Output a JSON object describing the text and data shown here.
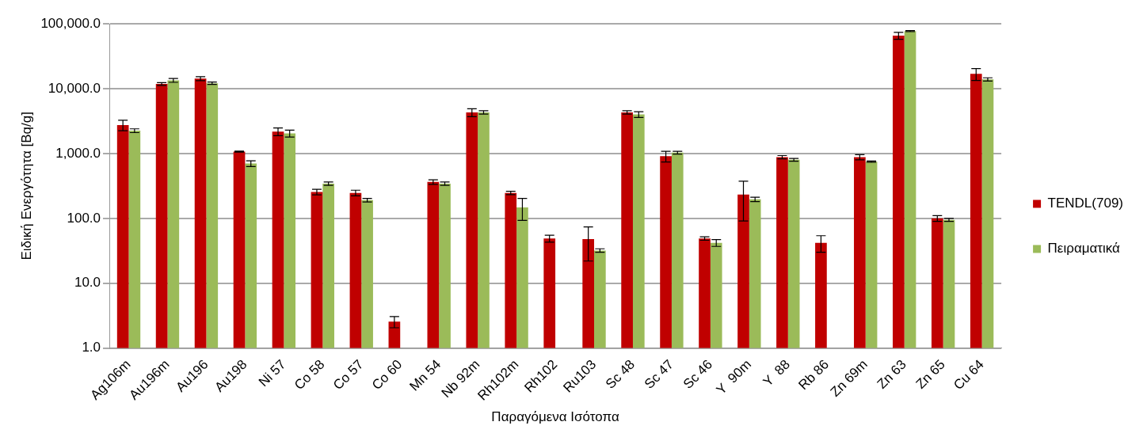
{
  "chart_data": {
    "type": "bar",
    "xlabel": "Παραγόμενα Ισότοπα",
    "ylabel": "Ειδική Ενεργότητα [Bq/g]",
    "categories": [
      "Ag106m",
      "Au196m",
      "Au196",
      "Au198",
      "Ni 57",
      "Co 58",
      "Co 57",
      "Co 60",
      "Mn 54",
      "Nb 92m",
      "Rh102m",
      "Rh102",
      "Ru103",
      "Sc 48",
      "Sc 47",
      "Sc 46",
      "Y  90m",
      "Y  88",
      "Rb 86",
      "Zn 69m",
      "Zn 63",
      "Zn 65",
      "Cu 64"
    ],
    "series": [
      {
        "name": "TENDL(709)",
        "color": "#c00000",
        "values": [
          2750,
          11800,
          14300,
          1070,
          2180,
          256,
          247,
          2.56,
          364,
          4300,
          247,
          49,
          48,
          4300,
          910,
          49,
          233,
          880,
          42,
          880,
          65700,
          100,
          16900
        ],
        "errors": [
          500,
          600,
          1000,
          20,
          300,
          25,
          25,
          0.5,
          30,
          600,
          15,
          6,
          26,
          250,
          170,
          3,
          142,
          50,
          12,
          80,
          8000,
          10,
          3500
        ]
      },
      {
        "name": "Πειραματικά",
        "color": "#9bbb59",
        "values": [
          2250,
          13400,
          12100,
          700,
          2040,
          343,
          191,
          null,
          343,
          4300,
          148,
          null,
          32,
          4000,
          1030,
          42,
          197,
          800,
          null,
          750,
          77000,
          95,
          13900
        ],
        "errors": [
          150,
          900,
          500,
          70,
          250,
          20,
          12,
          null,
          20,
          250,
          55,
          null,
          2,
          400,
          50,
          5,
          15,
          40,
          null,
          15,
          1500,
          5,
          800
        ]
      }
    ],
    "log": "y",
    "ylim": [
      1,
      100000
    ],
    "yticks": [
      {
        "value": 1,
        "label": "1.0"
      },
      {
        "value": 10,
        "label": "10.0"
      },
      {
        "value": 100,
        "label": "100.0"
      },
      {
        "value": 1000,
        "label": "1,000.0"
      },
      {
        "value": 10000,
        "label": "10,000.0"
      },
      {
        "value": 100000,
        "label": "100,000.0"
      }
    ],
    "grid": "y",
    "legend": "right"
  }
}
